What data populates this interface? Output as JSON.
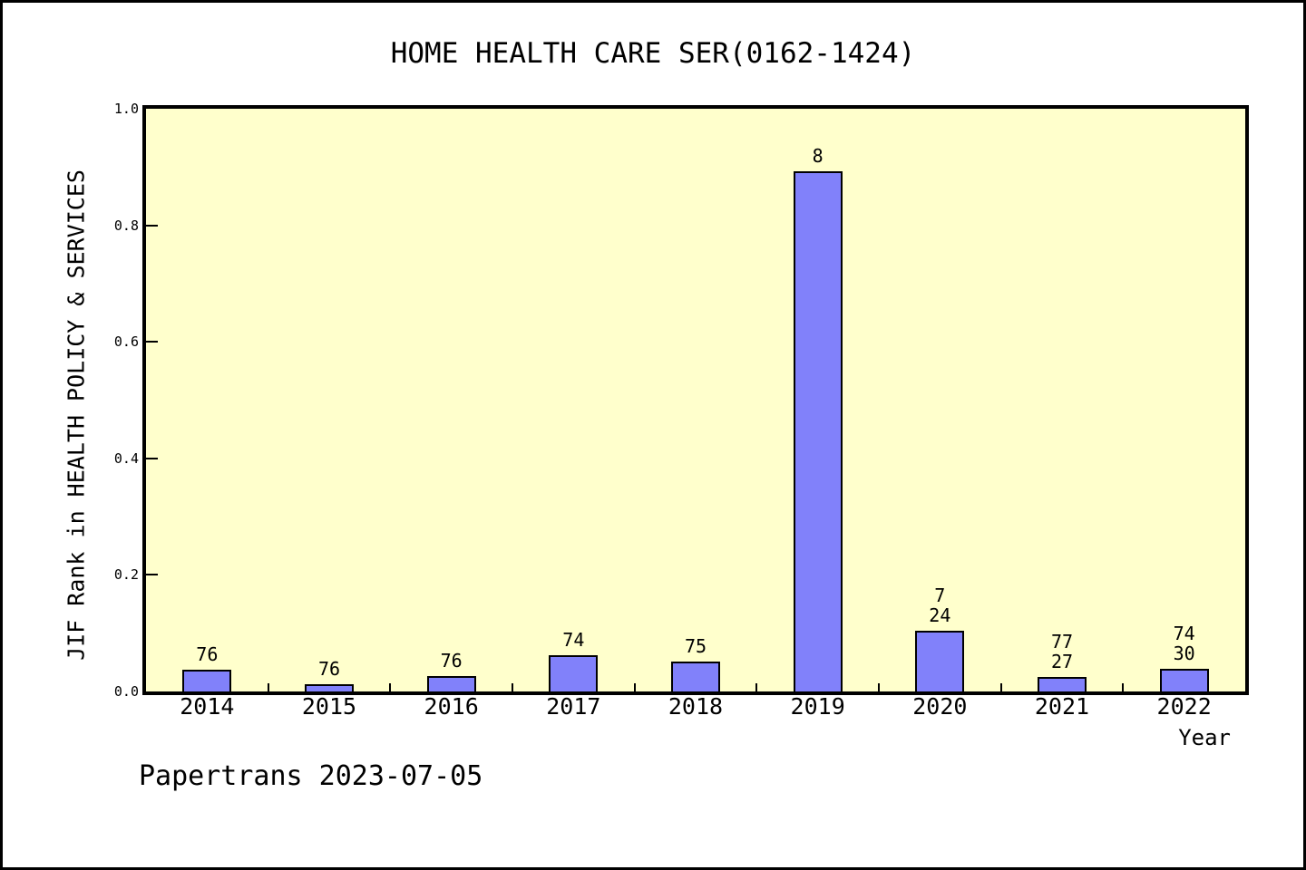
{
  "chart_data": {
    "type": "bar",
    "title": "HOME HEALTH CARE SER(0162-1424)",
    "xlabel": "Year",
    "ylabel": "JIF Rank in HEALTH POLICY & SERVICES",
    "footer": "Papertrans 2023-07-05",
    "categories": [
      "2014",
      "2015",
      "2016",
      "2017",
      "2018",
      "2019",
      "2020",
      "2021",
      "2022"
    ],
    "values": [
      0.037,
      0.012,
      0.026,
      0.062,
      0.051,
      0.893,
      0.104,
      0.025,
      0.039
    ],
    "bar_labels": [
      [
        "76"
      ],
      [
        "76"
      ],
      [
        "76"
      ],
      [
        "74"
      ],
      [
        "75"
      ],
      [
        "8"
      ],
      [
        "7",
        "24"
      ],
      [
        "77",
        "27"
      ],
      [
        "74",
        "30"
      ]
    ],
    "ylim": [
      0.0,
      1.0
    ],
    "yticks": [
      0.0,
      0.2,
      0.4,
      0.6,
      0.8,
      1.0
    ],
    "ytick_labels": [
      "0.0",
      "0.2",
      "0.4",
      "0.6",
      "0.8",
      "1.0"
    ],
    "grid": "off",
    "legend": "none",
    "colors": {
      "bar_fill": "#8181fa",
      "bar_border": "#000000",
      "plot_bg": "#ffffcc",
      "page_bg": "#ffffff",
      "axis": "#000000",
      "text": "#000000"
    }
  }
}
